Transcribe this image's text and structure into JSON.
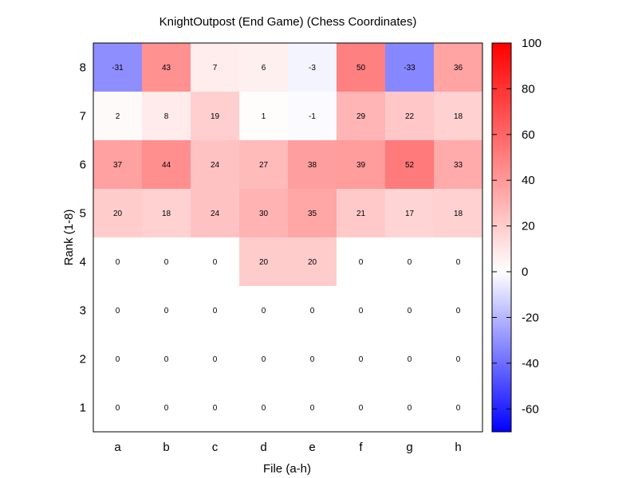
{
  "chart_data": {
    "type": "heatmap",
    "title": "KnightOutpost (End Game) (Chess Coordinates)",
    "xlabel": "File (a-h)",
    "ylabel": "Rank (1-8)",
    "x_categories": [
      "a",
      "b",
      "c",
      "d",
      "e",
      "f",
      "g",
      "h"
    ],
    "y_categories": [
      "1",
      "2",
      "3",
      "4",
      "5",
      "6",
      "7",
      "8"
    ],
    "rows": [
      {
        "rank": "8",
        "values": [
          -31,
          43,
          7,
          6,
          -3,
          50,
          -33,
          36
        ]
      },
      {
        "rank": "7",
        "values": [
          2,
          8,
          19,
          1,
          -1,
          29,
          22,
          18
        ]
      },
      {
        "rank": "6",
        "values": [
          37,
          44,
          24,
          27,
          38,
          39,
          52,
          33
        ]
      },
      {
        "rank": "5",
        "values": [
          20,
          18,
          24,
          30,
          35,
          21,
          17,
          18
        ]
      },
      {
        "rank": "4",
        "values": [
          0,
          0,
          0,
          20,
          20,
          0,
          0,
          0
        ]
      },
      {
        "rank": "3",
        "values": [
          0,
          0,
          0,
          0,
          0,
          0,
          0,
          0
        ]
      },
      {
        "rank": "2",
        "values": [
          0,
          0,
          0,
          0,
          0,
          0,
          0,
          0
        ]
      },
      {
        "rank": "1",
        "values": [
          0,
          0,
          0,
          0,
          0,
          0,
          0,
          0
        ]
      }
    ],
    "colorbar": {
      "range": [
        -70,
        100
      ],
      "ticks": [
        100,
        80,
        60,
        40,
        20,
        0,
        -20,
        -40,
        -60
      ],
      "colors": {
        "low": "#0000ff",
        "mid": "#ffffff",
        "high": "#ff0000"
      }
    },
    "grid": false,
    "legend": "colorbar-right"
  }
}
